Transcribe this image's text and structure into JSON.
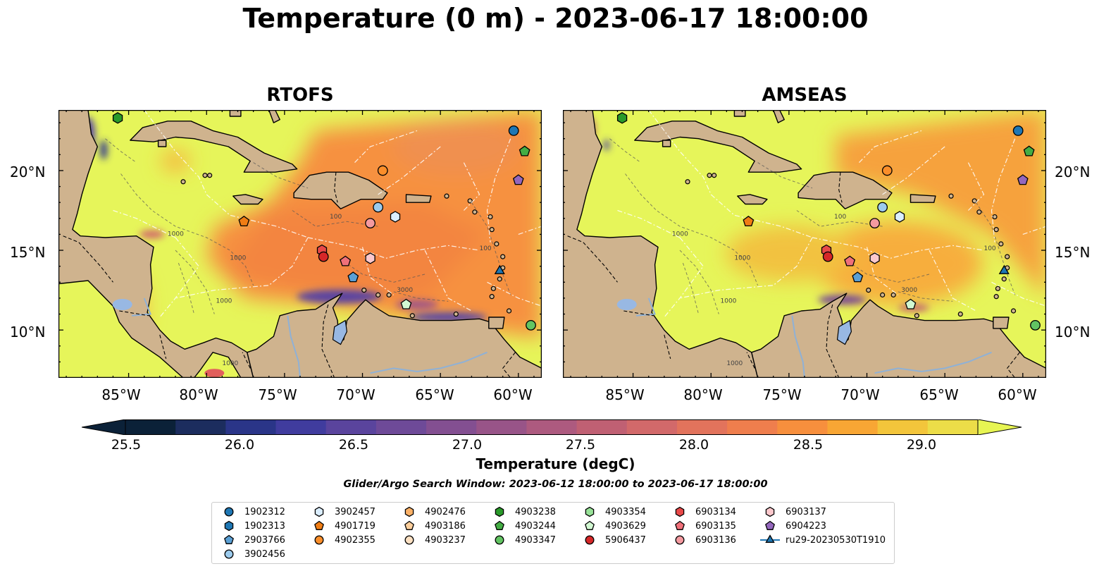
{
  "title": "Temperature (0 m) - 2023-06-17 18:00:00",
  "panels": [
    {
      "title": "RTOFS"
    },
    {
      "title": "AMSEAS"
    }
  ],
  "lat_labels": [
    "20°N",
    "15°N",
    "10°N"
  ],
  "lon_labels": [
    "85°W",
    "80°W",
    "75°W",
    "70°W",
    "65°W",
    "60°W"
  ],
  "map_extent": {
    "lon_min": -89.5,
    "lon_max": -58.5,
    "lat_min": 7.0,
    "lat_max": 23.8
  },
  "colorbar": {
    "label": "Temperature (degC)",
    "ticks": [
      "25.5",
      "26.0",
      "26.5",
      "27.0",
      "27.5",
      "28.0",
      "28.5",
      "29.0"
    ],
    "min": 25.25,
    "max": 29.25,
    "step": 0.25,
    "colors": [
      "#0b2138",
      "#1c2d5e",
      "#2a3588",
      "#403c9e",
      "#5a449d",
      "#6e4a98",
      "#834f91",
      "#985488",
      "#ad5a7f",
      "#c06073",
      "#d2696a",
      "#e2735c",
      "#ef7e4d",
      "#f78f3d",
      "#f8a634",
      "#f3c53b",
      "#ecdd48"
    ],
    "under_color": "#0b2138",
    "over_color": "#e7f553"
  },
  "colors": {
    "land": "#cfb38e",
    "ocean_warm": "#e6f55a",
    "ocean_orange": "#f6913f",
    "ocean_mid": "#f7b33c",
    "lake": "#98b8e3",
    "missing": "#97b6e1"
  },
  "search_window": "Glider/Argo Search Window: 2023-06-12 18:00:00 to 2023-06-17 18:00:00",
  "legend": [
    {
      "id": "1902312",
      "marker": "circle",
      "color": "#1f77b4"
    },
    {
      "id": "1902313",
      "marker": "hexagon",
      "color": "#1f77b4"
    },
    {
      "id": "2903766",
      "marker": "pentagon",
      "color": "#5a9fd4"
    },
    {
      "id": "3902456",
      "marker": "circle",
      "color": "#9ccbed"
    },
    {
      "id": "3902457",
      "marker": "hexagon",
      "color": "#dbeeff"
    },
    {
      "id": "4901719",
      "marker": "pentagon",
      "color": "#f07d14"
    },
    {
      "id": "4902355",
      "marker": "circle",
      "color": "#fb8e2a"
    },
    {
      "id": "4902476",
      "marker": "hexagon",
      "color": "#fbb167"
    },
    {
      "id": "4903186",
      "marker": "pentagon",
      "color": "#fdcf9c"
    },
    {
      "id": "4903237",
      "marker": "circle",
      "color": "#fde0c2"
    },
    {
      "id": "4903238",
      "marker": "hexagon",
      "color": "#2a9a2a"
    },
    {
      "id": "4903244",
      "marker": "pentagon",
      "color": "#44ad44"
    },
    {
      "id": "4903347",
      "marker": "circle",
      "color": "#62c462"
    },
    {
      "id": "4903354",
      "marker": "hexagon",
      "color": "#98e298"
    },
    {
      "id": "4903629",
      "marker": "pentagon",
      "color": "#d2f8d2"
    },
    {
      "id": "5906437",
      "marker": "circle",
      "color": "#d62728"
    },
    {
      "id": "6903134",
      "marker": "hexagon",
      "color": "#e84848"
    },
    {
      "id": "6903135",
      "marker": "pentagon",
      "color": "#f0707a"
    },
    {
      "id": "6903136",
      "marker": "circle",
      "color": "#f49aa0"
    },
    {
      "id": "6903137",
      "marker": "hexagon",
      "color": "#fcc8cc"
    },
    {
      "id": "6904223",
      "marker": "pentagon",
      "color": "#9467bd"
    },
    {
      "id": "ru29-20230530T1910",
      "marker": "triangle-line",
      "color": "#1f77b4"
    }
  ],
  "map_markers": [
    {
      "id": "1902312",
      "lon": -60.3,
      "lat": 22.5
    },
    {
      "id": "4903244",
      "lon": -59.6,
      "lat": 21.2
    },
    {
      "id": "6904223",
      "lon": -60.0,
      "lat": 19.4
    },
    {
      "id": "4903238",
      "lon": -85.7,
      "lat": 23.3
    },
    {
      "id": "4902355",
      "lon": -68.7,
      "lat": 20.0
    },
    {
      "id": "3902456",
      "lon": -69.0,
      "lat": 17.7
    },
    {
      "id": "3902457",
      "lon": -67.9,
      "lat": 17.1
    },
    {
      "id": "6903136",
      "lon": -69.5,
      "lat": 16.7
    },
    {
      "id": "4901719",
      "lon": -77.6,
      "lat": 16.8
    },
    {
      "id": "6903134",
      "lon": -72.6,
      "lat": 15.0
    },
    {
      "id": "5906437",
      "lon": -72.5,
      "lat": 14.6
    },
    {
      "id": "6903135",
      "lon": -71.1,
      "lat": 14.3
    },
    {
      "id": "6903137",
      "lon": -69.5,
      "lat": 14.5
    },
    {
      "id": "2903766",
      "lon": -70.6,
      "lat": 13.3
    },
    {
      "id": "4903629",
      "lon": -67.2,
      "lat": 11.6
    },
    {
      "id": "ru29-20230530T1910",
      "lon": -61.2,
      "lat": 13.7
    },
    {
      "id": "4903347",
      "lon": -59.2,
      "lat": 10.3
    }
  ]
}
